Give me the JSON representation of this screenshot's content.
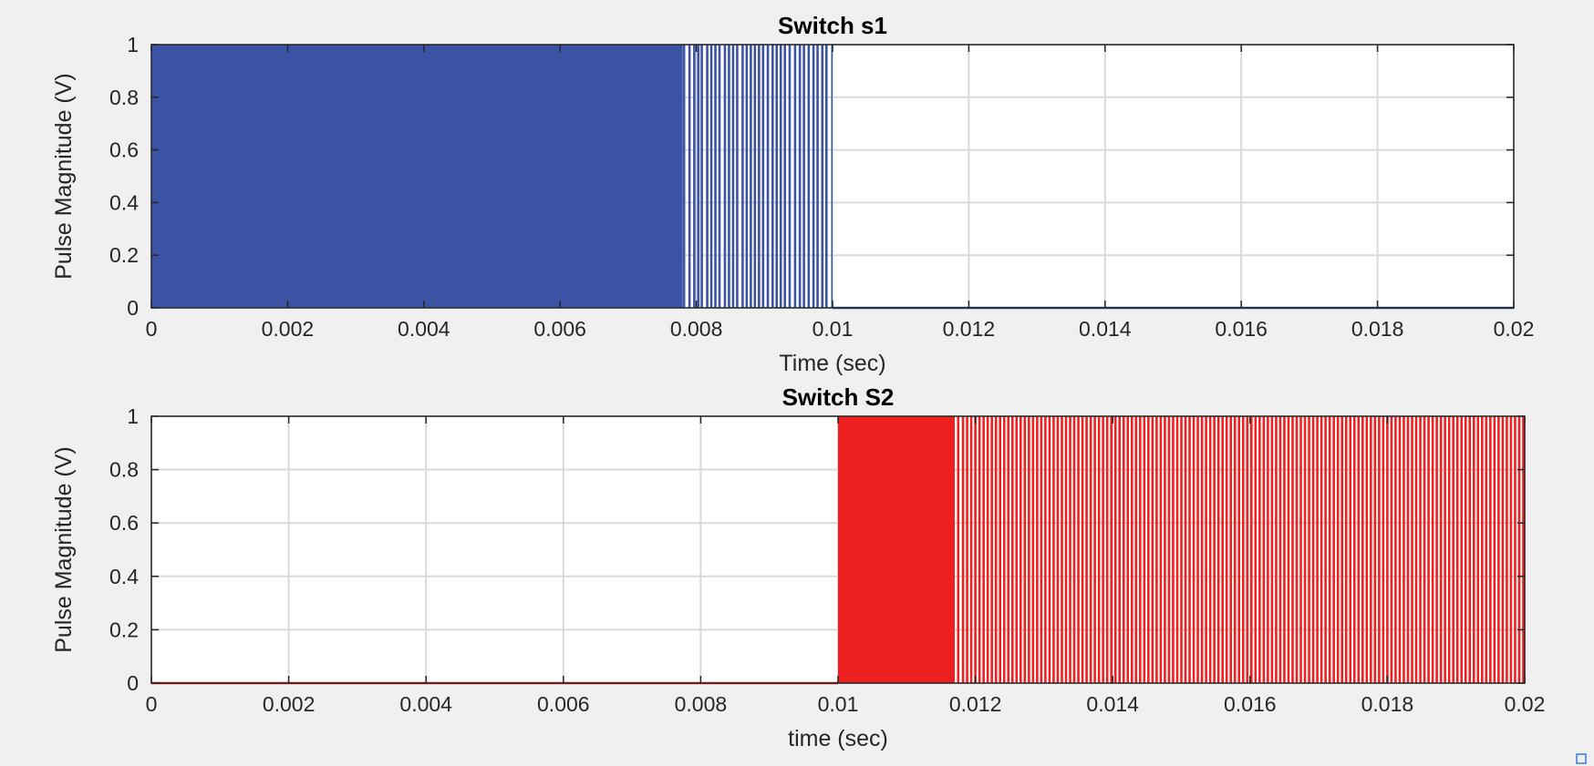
{
  "chart_data": [
    {
      "type": "line",
      "subtype": "pulse-train",
      "title": "Switch s1",
      "xlabel": "Time (sec)",
      "ylabel": "Pulse Magnitude (V)",
      "xlim": [
        0,
        0.02
      ],
      "ylim": [
        0,
        1
      ],
      "xticks": [
        0,
        0.002,
        0.004,
        0.006,
        0.008,
        0.01,
        0.012,
        0.014,
        0.016,
        0.018,
        0.02
      ],
      "xtick_labels": [
        "0",
        "0.002",
        "0.004",
        "0.006",
        "0.008",
        "0.01",
        "0.012",
        "0.014",
        "0.016",
        "0.018",
        "0.02"
      ],
      "yticks": [
        0,
        0.2,
        0.4,
        0.6,
        0.8,
        1
      ],
      "ytick_labels": [
        "0",
        "0.2",
        "0.4",
        "0.6",
        "0.8",
        "1"
      ],
      "grid": true,
      "color": "#3b53a4",
      "series": [
        {
          "name": "s1",
          "dense_blocks": [
            [
              0,
              0.0078
            ],
            [
              0.00998,
              0.01
            ]
          ],
          "pulses_x": [
            0.00782,
            0.0079,
            0.00797,
            0.00803,
            0.00808,
            0.00816,
            0.00822,
            0.00828,
            0.00834,
            0.00842,
            0.00848,
            0.00854,
            0.0086,
            0.00868,
            0.00874,
            0.0088,
            0.00886,
            0.00892,
            0.00898,
            0.00905,
            0.00912,
            0.00918,
            0.00924,
            0.0093,
            0.00937,
            0.00945,
            0.00952,
            0.00958,
            0.00965,
            0.00972,
            0.00978,
            0.00985,
            0.00991
          ],
          "off_after": 0.01,
          "off_value": 0
        }
      ]
    },
    {
      "type": "line",
      "subtype": "pulse-train",
      "title": "Switch S2",
      "xlabel": "time (sec)",
      "ylabel": "Pulse Magnitude (V)",
      "xlim": [
        0,
        0.02
      ],
      "ylim": [
        0,
        1
      ],
      "xticks": [
        0,
        0.002,
        0.004,
        0.006,
        0.008,
        0.01,
        0.012,
        0.014,
        0.016,
        0.018,
        0.02
      ],
      "xtick_labels": [
        "0",
        "0.002",
        "0.004",
        "0.006",
        "0.008",
        "0.01",
        "0.012",
        "0.014",
        "0.016",
        "0.018",
        "0.02"
      ],
      "yticks": [
        0,
        0.2,
        0.4,
        0.6,
        0.8,
        1
      ],
      "ytick_labels": [
        "0",
        "0.2",
        "0.4",
        "0.6",
        "0.8",
        "1"
      ],
      "grid": true,
      "color": "#ee2020",
      "series": [
        {
          "name": "S2",
          "dense_blocks": [
            [
              0.01,
              0.0117
            ]
          ],
          "pulses_x": [
            0.01175,
            0.01182,
            0.01188,
            0.01194,
            0.012,
            0.01206,
            0.01212,
            0.01218,
            0.01224,
            0.0123,
            0.01236,
            0.01242,
            0.01248,
            0.01254,
            0.0126,
            0.01266,
            0.01272,
            0.01278,
            0.01284,
            0.0129,
            0.01296,
            0.01302,
            0.01308,
            0.01314,
            0.0132,
            0.01326,
            0.01332,
            0.01338,
            0.01344,
            0.0135,
            0.01356,
            0.01362,
            0.01368,
            0.01374,
            0.0138,
            0.01386,
            0.01392,
            0.01398,
            0.01404,
            0.0141,
            0.01416,
            0.01422,
            0.01428,
            0.01434,
            0.0144,
            0.01446,
            0.01452,
            0.01458,
            0.01464,
            0.0147,
            0.01476,
            0.01482,
            0.01488,
            0.01494,
            0.015,
            0.01506,
            0.01512,
            0.01518,
            0.01524,
            0.0153,
            0.01536,
            0.01542,
            0.01548,
            0.01554,
            0.0156,
            0.01566,
            0.01572,
            0.01578,
            0.01584,
            0.0159,
            0.01596,
            0.01602,
            0.01608,
            0.01614,
            0.0162,
            0.01626,
            0.01632,
            0.01638,
            0.01644,
            0.0165,
            0.01656,
            0.01662,
            0.01668,
            0.01674,
            0.0168,
            0.01686,
            0.01692,
            0.01698,
            0.01704,
            0.0171,
            0.01716,
            0.01722,
            0.01728,
            0.01734,
            0.0174,
            0.01746,
            0.01752,
            0.01758,
            0.01764,
            0.0177,
            0.01776,
            0.01782,
            0.01788,
            0.01794,
            0.018,
            0.01806,
            0.01812,
            0.01818,
            0.01824,
            0.0183,
            0.01836,
            0.01842,
            0.01848,
            0.01854,
            0.0186,
            0.01866,
            0.01872,
            0.01878,
            0.01884,
            0.0189,
            0.01896,
            0.01902,
            0.01908,
            0.01914,
            0.0192,
            0.01926,
            0.01932,
            0.01938,
            0.01944,
            0.0195,
            0.01956,
            0.01962,
            0.01968,
            0.01974,
            0.0198,
            0.01986,
            0.01992,
            0.01998
          ],
          "off_before": 0.01,
          "off_value": 0
        }
      ]
    }
  ]
}
